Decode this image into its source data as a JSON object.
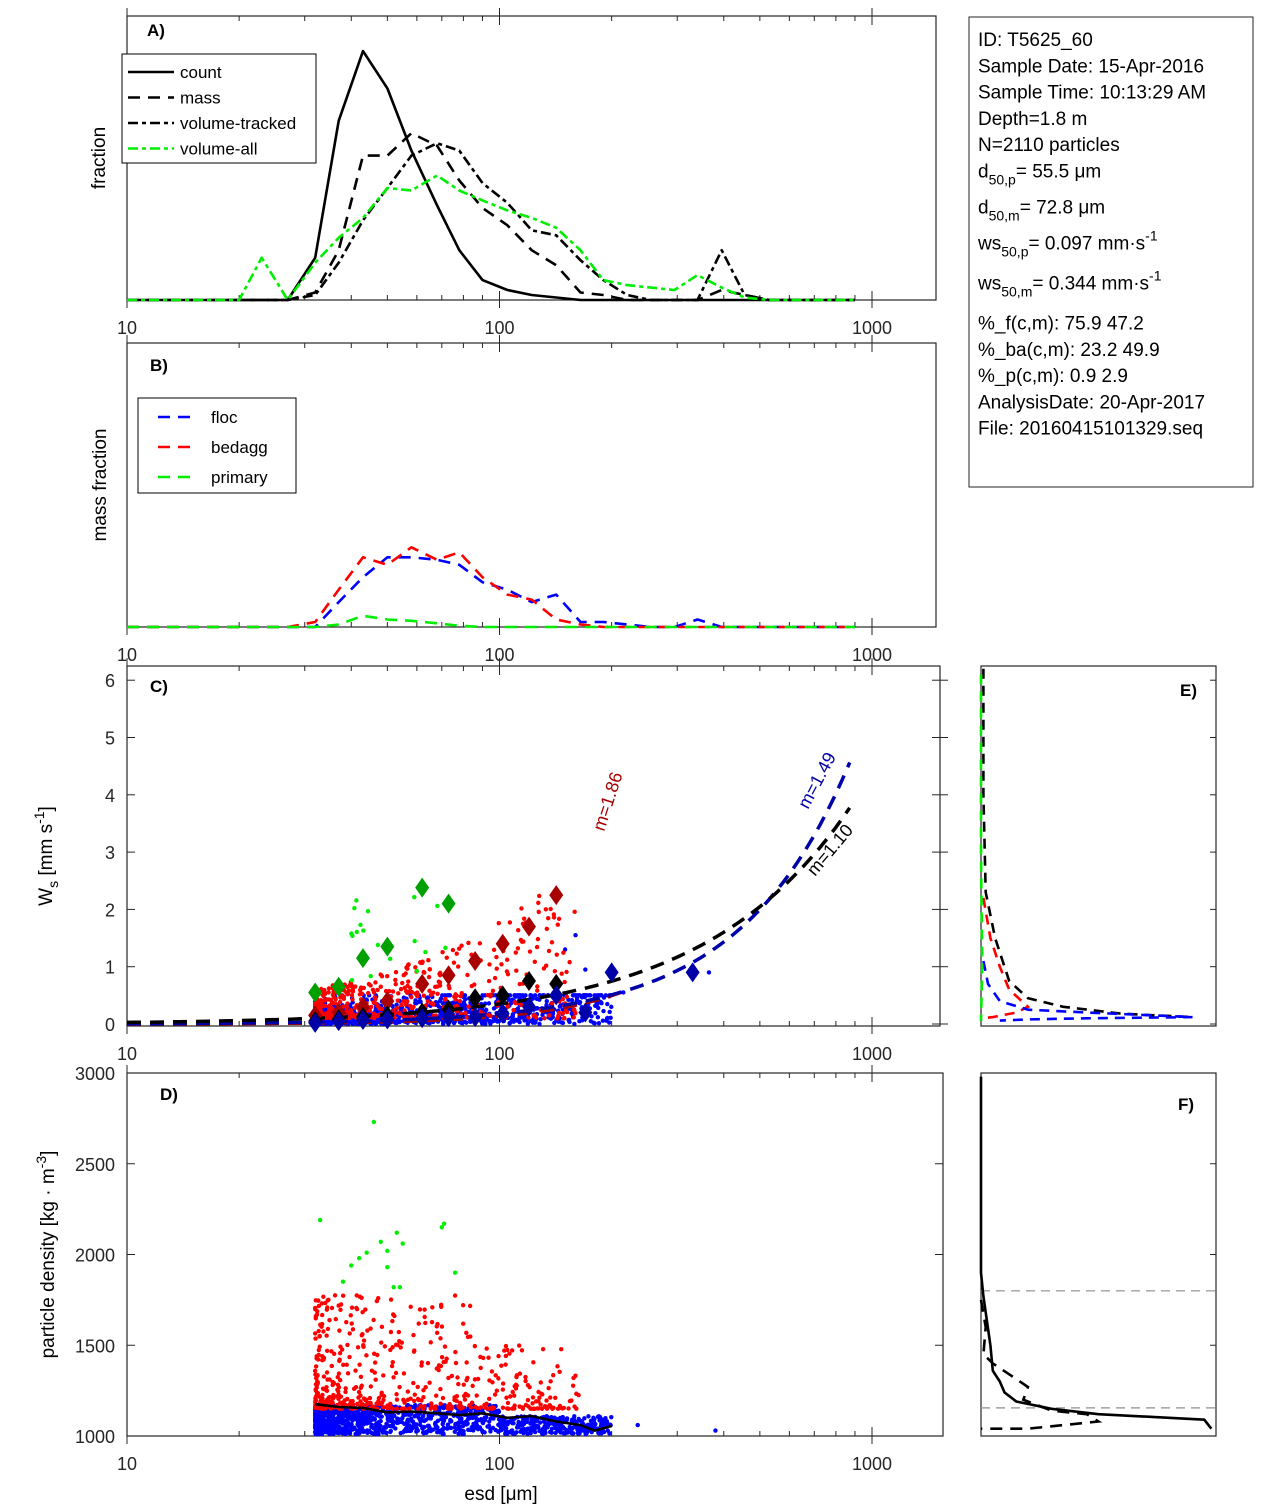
{
  "info_box": {
    "lines": [
      {
        "text": "ID: T5625_60"
      },
      {
        "text": "Sample Date: 15-Apr-2016"
      },
      {
        "text": "Sample Time: 10:13:29 AM"
      },
      {
        "text": "Depth=1.8 m"
      },
      {
        "text": "N=2110 particles"
      },
      {
        "main": "d",
        "sub": "50,p",
        "rest": "=  55.5 μm"
      },
      {
        "main": "d",
        "sub": "50,m",
        "rest": "=  72.8 μm"
      },
      {
        "main": "ws",
        "sub": "50,p",
        "rest": "= 0.097 mm·s",
        "sup": "-1"
      },
      {
        "main": "ws",
        "sub": "50,m",
        "rest": "= 0.344 mm·s",
        "sup": "-1"
      },
      {
        "text": "%_f(c,m): 75.9 47.2"
      },
      {
        "text": "%_ba(c,m): 23.2 49.9"
      },
      {
        "text": "%_p(c,m): 0.9 2.9"
      },
      {
        "text": "AnalysisDate: 20-Apr-2017"
      },
      {
        "text": "File: 20160415101329.seq"
      }
    ]
  },
  "colors": {
    "black": "#000000",
    "green_bright": "#00ee00",
    "green_dark": "#00a000",
    "blue": "#0000ff",
    "blue_dark": "#0000a8",
    "red": "#ff0000",
    "red_dark": "#a80000",
    "gray": "#a0a0a0"
  },
  "chart_data": [
    {
      "id": "A",
      "type": "line",
      "panel_label": "A)",
      "xlabel": "",
      "ylabel": "fraction",
      "xscale": "log",
      "xlim": [
        10,
        1500
      ],
      "xticks": [
        10,
        100,
        1000
      ],
      "xticklabels": [
        "10",
        "100",
        "1000"
      ],
      "ylim": [
        0,
        1.0
      ],
      "legend": {
        "placement": "top-left",
        "entries": [
          "count",
          "mass",
          "volume-tracked",
          "volume-all"
        ]
      },
      "x": [
        10,
        12,
        14,
        16,
        18,
        20,
        23,
        27,
        32,
        37,
        43,
        50,
        58,
        68,
        78,
        90,
        105,
        122,
        142,
        165,
        190,
        220,
        255,
        295,
        340,
        395,
        455,
        530,
        610,
        710,
        820,
        900
      ],
      "series": [
        {
          "name": "count",
          "style": "solid",
          "color": "#000000",
          "values": [
            0,
            0,
            0,
            0,
            0,
            0,
            0,
            0,
            0.17,
            0.72,
            1.0,
            0.85,
            0.6,
            0.38,
            0.2,
            0.08,
            0.04,
            0.02,
            0.01,
            0,
            0,
            0,
            0,
            0,
            0,
            0,
            0,
            0,
            0,
            0,
            0,
            0
          ]
        },
        {
          "name": "mass",
          "style": "dash",
          "color": "#000000",
          "values": [
            0,
            0,
            0,
            0,
            0,
            0,
            0,
            0,
            0.03,
            0.2,
            0.58,
            0.58,
            0.67,
            0.62,
            0.48,
            0.37,
            0.3,
            0.2,
            0.14,
            0.03,
            0.02,
            0,
            0,
            0,
            0,
            0.04,
            0.02,
            0,
            0,
            0,
            0,
            0
          ]
        },
        {
          "name": "volume-tracked",
          "style": "dashdot",
          "color": "#000000",
          "values": [
            0,
            0,
            0,
            0,
            0,
            0,
            0,
            0,
            0.02,
            0.15,
            0.32,
            0.45,
            0.58,
            0.63,
            0.6,
            0.47,
            0.39,
            0.28,
            0.26,
            0.16,
            0.08,
            0.02,
            0,
            0,
            0,
            0.2,
            0.02,
            0,
            0,
            0,
            0,
            0
          ]
        },
        {
          "name": "volume-all",
          "style": "dashdot",
          "color": "#00ee00",
          "values": [
            0,
            0,
            0,
            0,
            0,
            0,
            0.17,
            0,
            0.15,
            0.25,
            0.33,
            0.45,
            0.44,
            0.5,
            0.44,
            0.4,
            0.36,
            0.33,
            0.29,
            0.2,
            0.08,
            0.06,
            0.05,
            0.04,
            0.1,
            0.05,
            0.01,
            0,
            0,
            0,
            0,
            0
          ]
        }
      ]
    },
    {
      "id": "B",
      "type": "line",
      "panel_label": "B)",
      "xlabel": "",
      "ylabel": "mass fraction",
      "xscale": "log",
      "xlim": [
        10,
        1500
      ],
      "xticks": [
        10,
        100,
        1000
      ],
      "xticklabels": [
        "10",
        "100",
        "1000"
      ],
      "ylim": [
        0,
        1.0
      ],
      "legend": {
        "placement": "top-left",
        "entries": [
          "floc",
          "bedagg",
          "primary"
        ]
      },
      "x": [
        10,
        12,
        14,
        16,
        18,
        20,
        23,
        27,
        32,
        37,
        43,
        50,
        58,
        68,
        78,
        90,
        105,
        122,
        142,
        165,
        190,
        220,
        255,
        295,
        340,
        395,
        455,
        530,
        610,
        710,
        820,
        900
      ],
      "series": [
        {
          "name": "floc",
          "style": "dash",
          "color": "#0000ff",
          "values": [
            0,
            0,
            0,
            0,
            0,
            0,
            0,
            0,
            0,
            0.1,
            0.2,
            0.28,
            0.28,
            0.27,
            0.25,
            0.18,
            0.15,
            0.1,
            0.13,
            0.02,
            0.02,
            0.01,
            0,
            0,
            0.03,
            0,
            0,
            0,
            0,
            0,
            0,
            0
          ]
        },
        {
          "name": "bedagg",
          "style": "dash",
          "color": "#ff0000",
          "values": [
            0,
            0,
            0,
            0,
            0,
            0,
            0,
            0,
            0.02,
            0.15,
            0.28,
            0.25,
            0.32,
            0.27,
            0.3,
            0.2,
            0.13,
            0.11,
            0.03,
            0.01,
            0,
            0,
            0,
            0,
            0,
            0,
            0,
            0,
            0,
            0,
            0,
            0
          ]
        },
        {
          "name": "primary",
          "style": "dash",
          "color": "#00ee00",
          "values": [
            0,
            0,
            0,
            0,
            0,
            0,
            0,
            0,
            0,
            0.01,
            0.045,
            0.03,
            0.025,
            0.015,
            0.005,
            0,
            0,
            0,
            0,
            0,
            0,
            0,
            0,
            0,
            0,
            0,
            0,
            0,
            0,
            0,
            0,
            0
          ]
        }
      ]
    },
    {
      "id": "C",
      "type": "scatter",
      "panel_label": "C)",
      "xlabel": "",
      "ylabel": "W_s [mm s^-1]",
      "ylabel_main": "W",
      "ylabel_sub": "s",
      "ylabel_rest": " [mm s",
      "ylabel_sup": "-1",
      "ylabel_end": "]",
      "xscale": "log",
      "xlim": [
        10,
        1500
      ],
      "ylim": [
        0,
        6.2
      ],
      "xticks": [
        10,
        100,
        1000
      ],
      "xticklabels": [
        "10",
        "100",
        "1000"
      ],
      "yticks": [
        0,
        1,
        2,
        3,
        4,
        5,
        6
      ],
      "yticklabels": [
        "0",
        "1",
        "2",
        "3",
        "4",
        "5",
        "6"
      ],
      "fits": [
        {
          "name": "bedagg-fit",
          "label": "m=1.86",
          "color": "#a80000",
          "a": 2.6e-05,
          "m": 1.86,
          "xmax": 220
        },
        {
          "name": "floc-fit",
          "label": "m=1.49",
          "color": "#0000a8",
          "a": 0.00019,
          "m": 1.49,
          "xmax": 900
        },
        {
          "name": "all-fit",
          "label": "m=1.10",
          "color": "#000000",
          "a": 0.0022,
          "m": 1.1,
          "xmax": 880
        }
      ],
      "binned_means": [
        {
          "group": "primary",
          "color": "#00a000",
          "x": [
            32,
            37,
            43,
            50,
            62,
            73
          ],
          "y": [
            0.55,
            0.65,
            1.15,
            1.35,
            2.38,
            2.1
          ]
        },
        {
          "group": "bedagg",
          "color": "#a80000",
          "x": [
            32,
            37,
            43,
            50,
            62,
            73,
            86,
            102,
            120,
            142
          ],
          "y": [
            0.15,
            0.2,
            0.3,
            0.4,
            0.7,
            0.85,
            1.1,
            1.4,
            1.7,
            2.25
          ]
        },
        {
          "group": "all",
          "color": "#000000",
          "x": [
            32,
            37,
            43,
            50,
            62,
            73,
            86,
            102,
            120,
            142
          ],
          "y": [
            0.05,
            0.08,
            0.12,
            0.15,
            0.2,
            0.25,
            0.45,
            0.5,
            0.75,
            0.7
          ]
        },
        {
          "group": "floc",
          "color": "#0000a8",
          "x": [
            32,
            37,
            43,
            50,
            62,
            73,
            86,
            102,
            120,
            142,
            170,
            200,
            330
          ],
          "y": [
            0.02,
            0.05,
            0.07,
            0.08,
            0.1,
            0.12,
            0.12,
            0.18,
            0.3,
            0.5,
            0.2,
            0.9,
            0.9
          ]
        }
      ],
      "point_clouds": [
        {
          "group": "floc",
          "color": "#0000ff",
          "n": 900,
          "xrange": [
            32,
            200
          ],
          "yrange": [
            0,
            0.5
          ],
          "outliers": [
            [
              150,
              1.3
            ],
            [
              160,
              1.55
            ],
            [
              170,
              0.95
            ],
            [
              365,
              0.9
            ],
            [
              215,
              0.55
            ]
          ]
        },
        {
          "group": "bedagg",
          "color": "#ff0000",
          "n": 480,
          "xrange": [
            32,
            160
          ],
          "yrange": [
            0.1,
            2.4
          ]
        },
        {
          "group": "primary",
          "color": "#00ee00",
          "n": 18,
          "xrange": [
            40,
            75
          ],
          "yrange": [
            0.6,
            2.3
          ]
        }
      ]
    },
    {
      "id": "D",
      "type": "scatter",
      "panel_label": "D)",
      "xlabel": "esd [μm]",
      "ylabel": "particle density [kg · m^-3]",
      "ylabel_main": "particle density [kg · m",
      "ylabel_sup": "-3",
      "ylabel_end": "]",
      "xscale": "log",
      "xlim": [
        10,
        1500
      ],
      "ylim": [
        1000,
        3000
      ],
      "xticks": [
        10,
        100,
        1000
      ],
      "xticklabels": [
        "10",
        "100",
        "1000"
      ],
      "yticks": [
        1000,
        1500,
        2000,
        2500,
        3000
      ],
      "yticklabels": [
        "1000",
        "1500",
        "2000",
        "2500",
        "3000"
      ],
      "median_line": {
        "x": [
          32,
          37,
          43,
          50,
          58,
          68,
          78,
          90,
          105,
          122,
          142,
          165,
          180,
          200
        ],
        "y": [
          1175,
          1160,
          1155,
          1130,
          1135,
          1125,
          1115,
          1125,
          1100,
          1110,
          1080,
          1060,
          1030,
          1055
        ]
      },
      "point_clouds": [
        {
          "group": "floc",
          "color": "#0000ff",
          "n": 1100,
          "xrange": [
            32,
            200
          ],
          "yrange": [
            1010,
            1170
          ],
          "outliers": [
            [
              235,
              1060
            ],
            [
              380,
              1030
            ],
            [
              185,
              1015
            ]
          ]
        },
        {
          "group": "bedagg",
          "color": "#ff0000",
          "n": 520,
          "xrange": [
            32,
            165
          ],
          "yrange": [
            1150,
            1790
          ]
        },
        {
          "group": "primary",
          "color": "#00ee00",
          "points": [
            [
              33,
              2190
            ],
            [
              46,
              2730
            ],
            [
              40,
              1940
            ],
            [
              42,
              1980
            ],
            [
              44,
              2010
            ],
            [
              38,
              1850
            ],
            [
              48,
              2070
            ],
            [
              50,
              2020
            ],
            [
              50,
              1930
            ],
            [
              53,
              2120
            ],
            [
              55,
              2060
            ],
            [
              52,
              1820
            ],
            [
              54,
              1820
            ],
            [
              70,
              2150
            ],
            [
              71,
              2170
            ],
            [
              76,
              1900
            ]
          ]
        }
      ]
    },
    {
      "id": "E",
      "type": "line",
      "panel_label": "E)",
      "ylim": [
        0,
        6.2
      ],
      "xlim": [
        0,
        1
      ],
      "series": [
        {
          "name": "all",
          "color": "#000000",
          "x": [
            0.01,
            0.01,
            0.02,
            0.06,
            0.12,
            0.2,
            0.35,
            0.6,
            0.9
          ],
          "y": [
            6.2,
            4.0,
            2.3,
            1.5,
            0.75,
            0.45,
            0.3,
            0.18,
            0.12
          ]
        },
        {
          "name": "bedagg",
          "color": "#ff0000",
          "x": [
            0.01,
            0.04,
            0.08,
            0.12,
            0.2,
            0.15,
            0.05,
            0.01
          ],
          "y": [
            2.2,
            1.5,
            1.0,
            0.6,
            0.3,
            0.2,
            0.12,
            0.1
          ]
        },
        {
          "name": "floc",
          "color": "#0000ff",
          "x": [
            0.01,
            0.03,
            0.08,
            0.2,
            0.45,
            0.9,
            0.45,
            0.2,
            0.08
          ],
          "y": [
            1.1,
            0.7,
            0.4,
            0.25,
            0.2,
            0.12,
            0.1,
            0.08,
            0.06
          ]
        },
        {
          "name": "primary",
          "color": "#00ee00",
          "x": [
            0.0,
            0.0,
            0.005,
            0.0
          ],
          "y": [
            6.1,
            3.0,
            1.0,
            0.05
          ]
        }
      ]
    },
    {
      "id": "F",
      "type": "line",
      "panel_label": "F)",
      "ylim": [
        1000,
        3000
      ],
      "xlim": [
        0,
        1
      ],
      "reference_lines": [
        1800,
        1155
      ],
      "series": [
        {
          "name": "density-solid",
          "style": "solid",
          "color": "#000000",
          "x": [
            0.0,
            0.0,
            0.0,
            0.01,
            0.04,
            0.05,
            0.08,
            0.1,
            0.15,
            0.3,
            0.5,
            0.8,
            0.95,
            0.98
          ],
          "y": [
            2980,
            2400,
            1900,
            1770,
            1500,
            1360,
            1300,
            1240,
            1190,
            1150,
            1120,
            1100,
            1090,
            1040
          ]
        },
        {
          "name": "density-dashed",
          "style": "dash",
          "color": "#000000",
          "x": [
            0.0,
            0.02,
            0.01,
            0.05,
            0.12,
            0.2,
            0.18,
            0.3,
            0.45,
            0.5,
            0.2,
            0.0,
            0.0
          ],
          "y": [
            1750,
            1600,
            1450,
            1400,
            1340,
            1270,
            1200,
            1140,
            1120,
            1080,
            1040,
            1040,
            1040
          ]
        }
      ]
    }
  ]
}
